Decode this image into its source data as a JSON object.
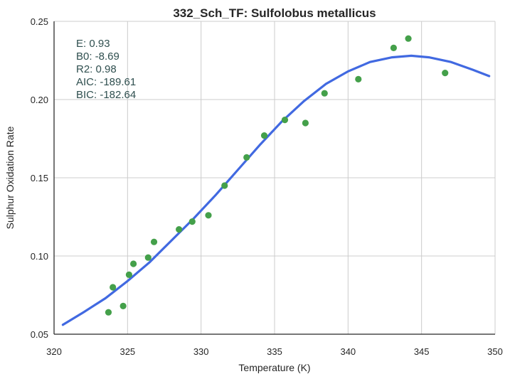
{
  "chart_data": {
    "type": "scatter",
    "title": "332_Sch_TF: Sulfolobus metallicus",
    "xlabel": "Temperature (K)",
    "ylabel": "Sulphur Oxidation Rate",
    "xlim": [
      320,
      350
    ],
    "ylim": [
      0.05,
      0.25
    ],
    "xticks": [
      320,
      325,
      330,
      335,
      340,
      345,
      350
    ],
    "yticks": [
      0.05,
      0.1,
      0.15,
      0.2,
      0.25
    ],
    "xtick_labels": [
      "320",
      "325",
      "330",
      "335",
      "340",
      "345",
      "350"
    ],
    "ytick_labels": [
      "0.05",
      "0.10",
      "0.15",
      "0.20",
      "0.25"
    ],
    "grid": true,
    "annotation_lines": [
      "E:  0.93",
      "B0:  -8.69",
      "R2:  0.98",
      "AIC: -189.61",
      "BIC: -182.64"
    ],
    "series": [
      {
        "kind": "scatter",
        "color": "#44a04a",
        "points": [
          [
            323.7,
            0.064
          ],
          [
            324.0,
            0.08
          ],
          [
            324.7,
            0.068
          ],
          [
            325.1,
            0.088
          ],
          [
            325.4,
            0.095
          ],
          [
            326.4,
            0.099
          ],
          [
            326.8,
            0.109
          ],
          [
            328.5,
            0.117
          ],
          [
            329.4,
            0.122
          ],
          [
            330.5,
            0.126
          ],
          [
            331.6,
            0.145
          ],
          [
            333.1,
            0.163
          ],
          [
            334.3,
            0.177
          ],
          [
            335.7,
            0.187
          ],
          [
            337.1,
            0.185
          ],
          [
            338.4,
            0.204
          ],
          [
            340.7,
            0.213
          ],
          [
            343.1,
            0.233
          ],
          [
            344.1,
            0.239
          ],
          [
            346.6,
            0.217
          ]
        ]
      },
      {
        "kind": "line",
        "color": "#4169e1",
        "points": [
          [
            320.6,
            0.056
          ],
          [
            322.0,
            0.064
          ],
          [
            323.5,
            0.073
          ],
          [
            325.0,
            0.084
          ],
          [
            326.5,
            0.096
          ],
          [
            328.0,
            0.11
          ],
          [
            329.5,
            0.124
          ],
          [
            331.0,
            0.139
          ],
          [
            332.5,
            0.155
          ],
          [
            334.0,
            0.171
          ],
          [
            335.5,
            0.186
          ],
          [
            337.0,
            0.199
          ],
          [
            338.5,
            0.21
          ],
          [
            340.0,
            0.218
          ],
          [
            341.5,
            0.224
          ],
          [
            343.0,
            0.227
          ],
          [
            344.3,
            0.228
          ],
          [
            345.5,
            0.227
          ],
          [
            347.0,
            0.224
          ],
          [
            348.5,
            0.219
          ],
          [
            349.6,
            0.215
          ]
        ]
      }
    ]
  }
}
